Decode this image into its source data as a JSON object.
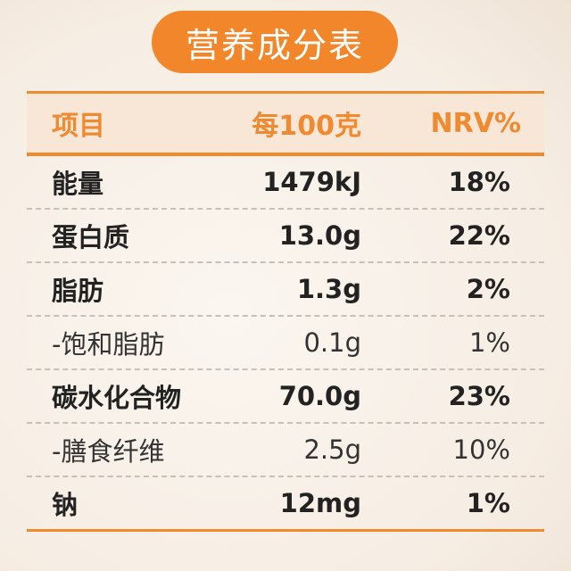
{
  "header": {
    "title": "营养成分表"
  },
  "table": {
    "columns": [
      "项目",
      "每100克",
      "NRV%"
    ],
    "rows": [
      [
        "能量",
        "1479kJ",
        "18%"
      ],
      [
        "蛋白质",
        "13.0g",
        "22%"
      ],
      [
        "脂肪",
        "1.3g",
        "2%"
      ],
      [
        "-饱和脂肪",
        "0.1g",
        "1%"
      ],
      [
        "碳水化合物",
        "70.0g",
        "23%"
      ],
      [
        "-膳食纤维",
        "2.5g",
        "10%"
      ],
      [
        "钠",
        "12mg",
        "1%"
      ]
    ]
  }
}
